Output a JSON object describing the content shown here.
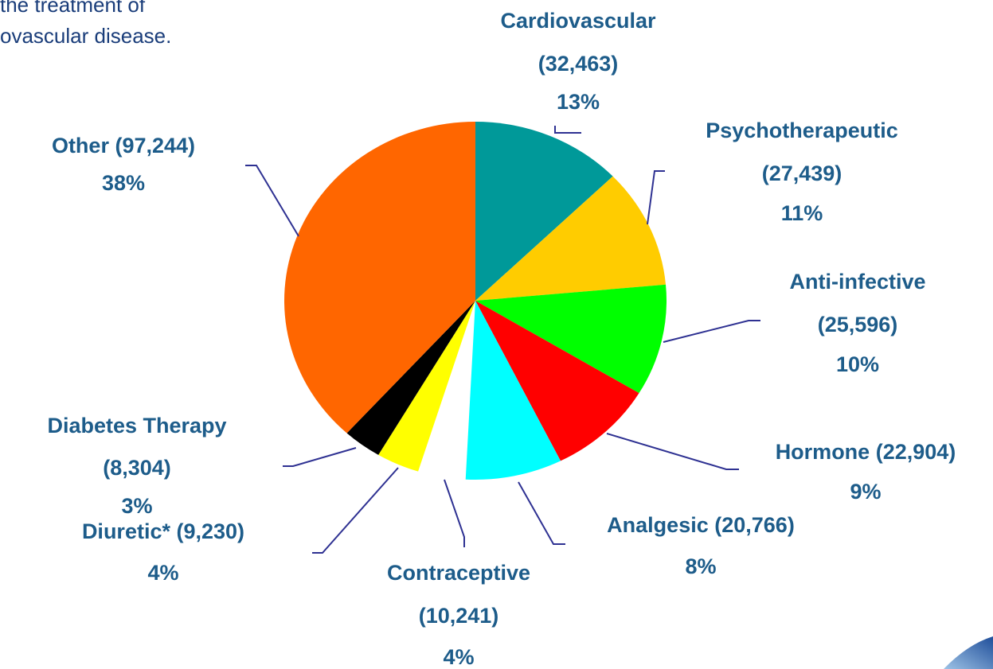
{
  "annotation_lines": [
    "the treatment of",
    "ovascular disease."
  ],
  "chart_data": {
    "type": "pie",
    "categories": [
      "Cardiovascular",
      "Psychotherapeutic",
      "Anti-infective",
      "Hormone",
      "Analgesic",
      "Contraceptive",
      "Diuretic*",
      "Diabetes Therapy",
      "Other"
    ],
    "values": [
      32463,
      27439,
      25596,
      22904,
      20766,
      10241,
      9230,
      8304,
      97244
    ],
    "value_labels": [
      "(32,463)",
      "(27,439)",
      "(25,596)",
      "(22,904)",
      "(20,766)",
      "(10,241)",
      "(9,230)",
      "(8,304)",
      "(97,244)"
    ],
    "percent_labels": [
      "13%",
      "11%",
      "10%",
      "9%",
      "8%",
      "4%",
      "4%",
      "3%",
      "38%"
    ],
    "colors": [
      "#009999",
      "#ffcc00",
      "#00ff00",
      "#ff0000",
      "#00ffff",
      "#ffffff",
      "#ffff00",
      "#000000",
      "#ff6600"
    ]
  }
}
